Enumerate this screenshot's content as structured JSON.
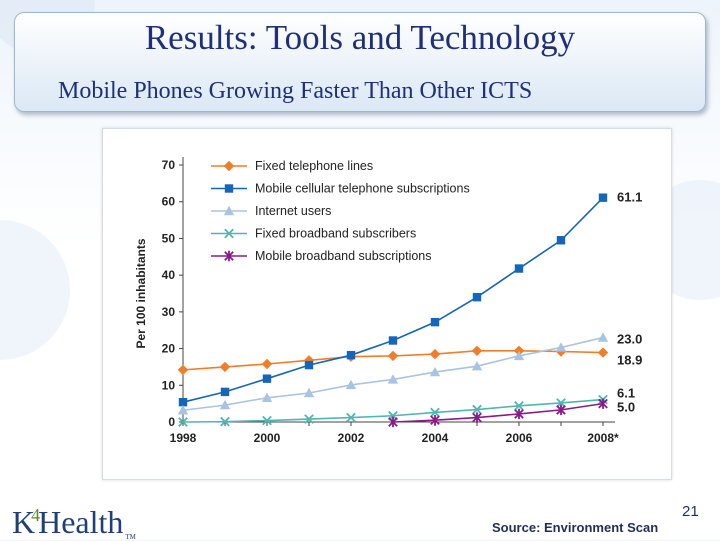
{
  "slide": {
    "title": "Results: Tools and Technology",
    "subtitle": "Mobile Phones Growing Faster Than Other ICTS",
    "source": "Source: Environment Scan",
    "page_number": "21",
    "logo": {
      "k": "K",
      "four": "4",
      "rest": "Health",
      "tm": "TM"
    }
  },
  "colors": {
    "title": "#1f2f7a",
    "fixed_lines": "#f07d2a",
    "mobile_cellular": "#1565b8",
    "internet": "#a8c4e2",
    "fixed_broadband": "#4fb6b0",
    "mobile_broadband": "#8a1a8a"
  },
  "chart_data": {
    "type": "line",
    "ylabel": "Per 100 inhabitants",
    "xlabel": "",
    "ylim": [
      0,
      70
    ],
    "yticks": [
      0,
      10,
      20,
      30,
      40,
      50,
      60,
      70
    ],
    "x": [
      1998,
      1999,
      2000,
      2001,
      2002,
      2003,
      2004,
      2005,
      2006,
      2007,
      2008
    ],
    "xtick_labels": [
      "1998",
      "2000",
      "2002",
      "2004",
      "2006",
      "2008*"
    ],
    "grid": false,
    "legend": "top-left",
    "series": [
      {
        "name": "Fixed telephone lines",
        "key": "fixed_lines",
        "marker": "diamond",
        "values": [
          14.2,
          15.0,
          15.8,
          16.8,
          17.8,
          18.0,
          18.5,
          19.4,
          19.4,
          19.2,
          18.9
        ],
        "end_label": "18.9"
      },
      {
        "name": "Mobile cellular telephone subscriptions",
        "key": "mobile_cellular",
        "marker": "square",
        "values": [
          5.4,
          8.2,
          11.8,
          15.5,
          18.2,
          22.2,
          27.2,
          34.0,
          41.8,
          49.5,
          61.1
        ],
        "end_label": "61.1"
      },
      {
        "name": "Internet users",
        "key": "internet",
        "marker": "triangle",
        "values": [
          3.2,
          4.6,
          6.6,
          7.9,
          10.1,
          11.6,
          13.6,
          15.2,
          18.0,
          20.3,
          23.0
        ],
        "end_label": "23.0"
      },
      {
        "name": "Fixed broadband subscribers",
        "key": "fixed_broadband",
        "marker": "x",
        "values": [
          0.0,
          0.1,
          0.4,
          0.8,
          1.2,
          1.7,
          2.6,
          3.4,
          4.4,
          5.2,
          6.1
        ],
        "end_label": "6.1"
      },
      {
        "name": "Mobile broadband subscriptions",
        "key": "mobile_broadband",
        "marker": "star",
        "values": [
          null,
          null,
          null,
          null,
          null,
          0.0,
          0.5,
          1.2,
          2.2,
          3.3,
          5.0
        ],
        "end_label": "5.0"
      }
    ]
  }
}
